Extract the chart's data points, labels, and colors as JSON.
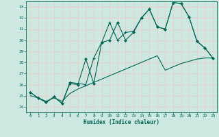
{
  "xlabel": "Humidex (Indice chaleur)",
  "bg_color": "#cce8e0",
  "grid_color": "#f0c8c8",
  "line_color": "#006655",
  "xlim": [
    -0.5,
    23.5
  ],
  "ylim": [
    23.5,
    33.5
  ],
  "xticks": [
    0,
    1,
    2,
    3,
    4,
    5,
    6,
    7,
    8,
    9,
    10,
    11,
    12,
    13,
    14,
    15,
    16,
    17,
    18,
    19,
    20,
    21,
    22,
    23
  ],
  "yticks": [
    24,
    25,
    26,
    27,
    28,
    29,
    30,
    31,
    32,
    33
  ],
  "series1_x": [
    0,
    1,
    2,
    3,
    4,
    5,
    6,
    7,
    8,
    9,
    10,
    11,
    12,
    13,
    14,
    15,
    16,
    17,
    18,
    19,
    20,
    21,
    22,
    23
  ],
  "series1_y": [
    25.3,
    24.8,
    24.4,
    24.9,
    24.3,
    26.2,
    26.1,
    26.0,
    28.4,
    29.8,
    31.6,
    30.0,
    30.7,
    30.8,
    32.0,
    32.8,
    31.2,
    31.0,
    33.4,
    33.3,
    32.1,
    29.9,
    29.3,
    28.4
  ],
  "series2_x": [
    0,
    1,
    2,
    3,
    4,
    5,
    6,
    7,
    8,
    9,
    10,
    11,
    12,
    13,
    14,
    15,
    16,
    17,
    18,
    19,
    20,
    21,
    22,
    23
  ],
  "series2_y": [
    25.3,
    24.8,
    24.4,
    24.9,
    24.3,
    26.1,
    26.0,
    28.3,
    26.1,
    29.8,
    30.0,
    31.6,
    30.0,
    30.7,
    32.0,
    32.8,
    31.2,
    31.0,
    33.4,
    33.3,
    32.1,
    29.9,
    29.3,
    28.4
  ],
  "series3_x": [
    0,
    1,
    2,
    3,
    4,
    5,
    6,
    7,
    8,
    9,
    10,
    11,
    12,
    13,
    14,
    15,
    16,
    17,
    18,
    19,
    20,
    21,
    22,
    23
  ],
  "series3_y": [
    25.0,
    24.8,
    24.5,
    24.8,
    24.5,
    25.2,
    25.6,
    25.9,
    26.2,
    26.5,
    26.8,
    27.1,
    27.4,
    27.7,
    28.0,
    28.3,
    28.6,
    27.3,
    27.6,
    27.9,
    28.1,
    28.3,
    28.4,
    28.4
  ]
}
